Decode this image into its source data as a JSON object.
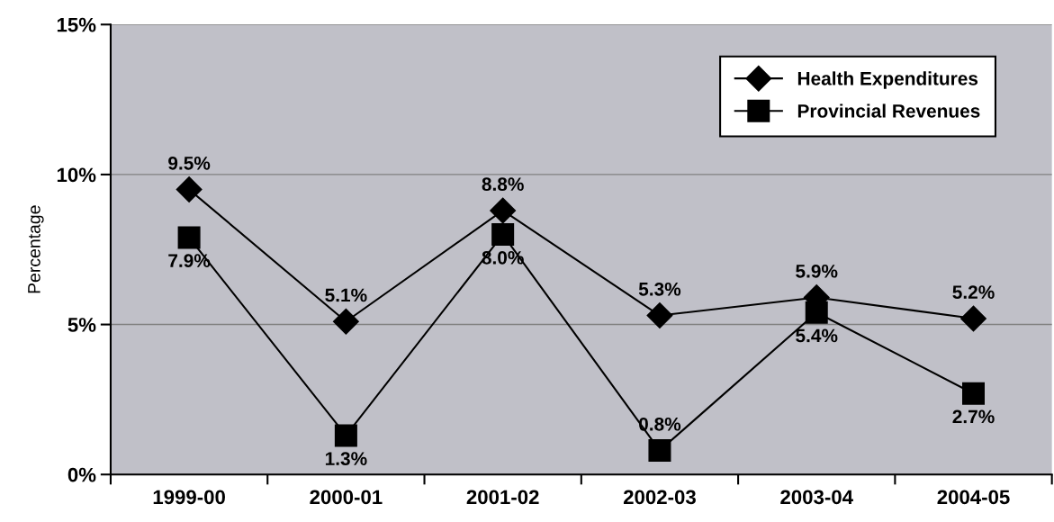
{
  "chart_data": {
    "type": "line",
    "ylabel": "Percentage",
    "categories": [
      "1999-00",
      "2000-01",
      "2001-02",
      "2002-03",
      "2003-04",
      "2004-05"
    ],
    "series": [
      {
        "name": "Health Expenditures",
        "color": "#000000",
        "marker": "diamond",
        "values": [
          9.5,
          5.1,
          8.8,
          5.3,
          5.9,
          5.2
        ],
        "value_labels": [
          "9.5%",
          "5.1%",
          "8.8%",
          "5.3%",
          "5.9%",
          "5.2%"
        ]
      },
      {
        "name": "Provincial Revenues",
        "color": "#000000",
        "marker": "square",
        "values": [
          7.9,
          1.3,
          8.0,
          0.8,
          5.4,
          2.7
        ],
        "value_labels": [
          "7.9%",
          "1.3%",
          "8.0%",
          "0.8%",
          "5.4%",
          "2.7%"
        ]
      }
    ],
    "ylim": [
      0,
      15
    ],
    "yticks": [
      {
        "value": 0,
        "label": "0%"
      },
      {
        "value": 5,
        "label": "5%"
      },
      {
        "value": 10,
        "label": "10%"
      },
      {
        "value": 15,
        "label": "15%"
      }
    ],
    "grid": "y",
    "legend": "top right",
    "line_style": "solid"
  }
}
